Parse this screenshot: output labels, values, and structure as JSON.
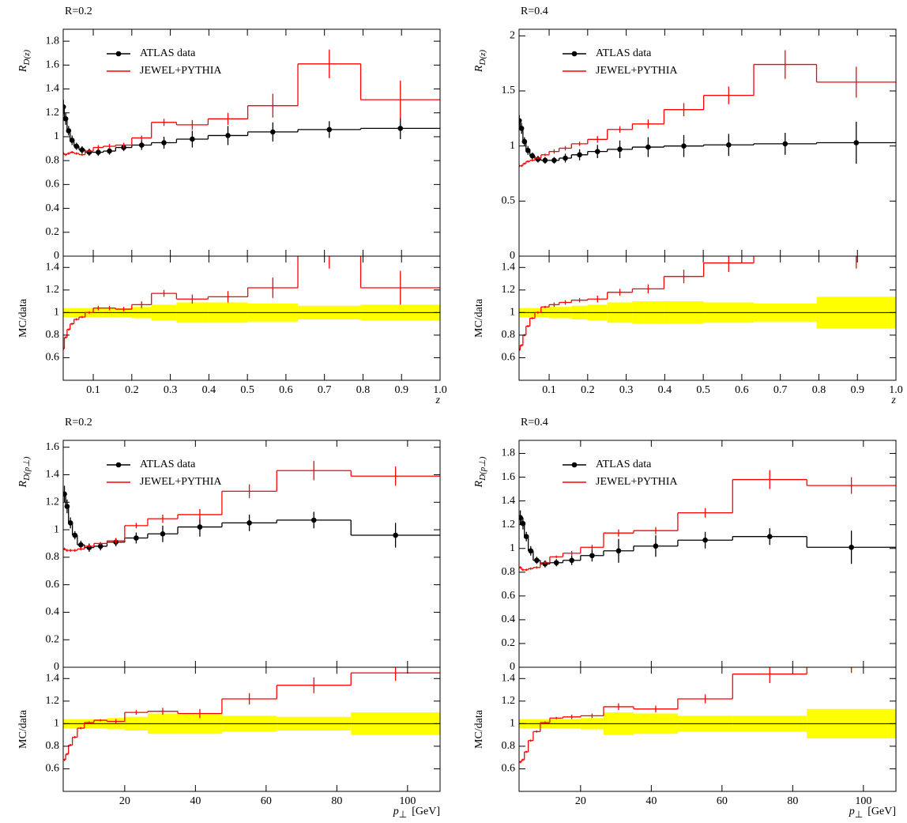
{
  "chart_data": [
    {
      "type": "histogram",
      "title": "R=0.2",
      "xlabel": "z",
      "xlim": [
        0.022,
        1.0
      ],
      "xticks": [
        0.1,
        0.2,
        0.3,
        0.4,
        0.5,
        0.6,
        0.7,
        0.8,
        0.9,
        {
          "value": 1,
          "label": "1.0"
        }
      ],
      "bins": [
        0.02,
        0.025,
        0.032,
        0.04,
        0.05,
        0.063,
        0.079,
        0.1,
        0.126,
        0.158,
        0.2,
        0.251,
        0.316,
        0.398,
        0.501,
        0.631,
        0.794,
        1.0
      ],
      "main": {
        "ylabel": "R",
        "ylabel_sub": "D(z)",
        "legend": "upper left",
        "ylim": [
          0,
          1.9
        ],
        "yticks": [
          0,
          0.2,
          0.4,
          0.6,
          0.8,
          1,
          1.2,
          1.4,
          1.6,
          1.8
        ],
        "series": [
          {
            "name": "ATLAS data",
            "kind": "points",
            "color": "#000000",
            "values": [
              1.25,
              1.15,
              1.05,
              0.97,
              0.92,
              0.89,
              0.87,
              0.87,
              0.88,
              0.91,
              0.93,
              0.95,
              0.98,
              1.01,
              1.04,
              1.06,
              1.07
            ],
            "errors": [
              0.06,
              0.05,
              0.04,
              0.04,
              0.03,
              0.03,
              0.03,
              0.03,
              0.03,
              0.03,
              0.04,
              0.05,
              0.07,
              0.08,
              0.08,
              0.07,
              0.09
            ]
          },
          {
            "name": "JEWEL+PYTHIA",
            "kind": "step",
            "color": "#ff0000",
            "values": [
              0.86,
              0.85,
              0.86,
              0.87,
              0.86,
              0.85,
              0.88,
              0.91,
              0.92,
              0.93,
              0.99,
              1.12,
              1.1,
              1.15,
              1.26,
              1.61,
              1.31
            ],
            "errors": [
              0.01,
              0.01,
              0.01,
              0.01,
              0.01,
              0.01,
              0.01,
              0.02,
              0.02,
              0.02,
              0.02,
              0.03,
              0.04,
              0.05,
              0.1,
              0.12,
              0.16
            ]
          }
        ]
      },
      "ratio": {
        "ylabel": "MC/data",
        "ylim": [
          0.4,
          1.5
        ],
        "yticks": [
          0.6,
          0.8,
          1,
          1.2,
          1.4
        ],
        "series": [
          {
            "kind": "band",
            "color": "#ffff00",
            "line_color": "#000000",
            "values": [
              1,
              1,
              1,
              1,
              1,
              1,
              1,
              1,
              1,
              1,
              1,
              1,
              1,
              1,
              1,
              1,
              1
            ],
            "errors": [
              0.04,
              0.04,
              0.04,
              0.04,
              0.04,
              0.04,
              0.04,
              0.04,
              0.04,
              0.04,
              0.05,
              0.07,
              0.09,
              0.09,
              0.08,
              0.06,
              0.07
            ]
          },
          {
            "kind": "step",
            "color": "#ff0000",
            "values": [
              0.68,
              0.78,
              0.85,
              0.9,
              0.94,
              0.96,
              1.0,
              1.04,
              1.04,
              1.03,
              1.07,
              1.17,
              1.12,
              1.14,
              1.22,
              1.52,
              1.22
            ],
            "errors": [
              0.01,
              0.01,
              0.01,
              0.01,
              0.01,
              0.01,
              0.01,
              0.02,
              0.02,
              0.02,
              0.03,
              0.03,
              0.04,
              0.05,
              0.09,
              0.13,
              0.15
            ]
          }
        ]
      }
    },
    {
      "type": "histogram",
      "title": "R=0.4",
      "xlabel": "z",
      "xlim": [
        0.022,
        1.0
      ],
      "xticks": [
        0.1,
        0.2,
        0.3,
        0.4,
        0.5,
        0.6,
        0.7,
        0.8,
        0.9,
        {
          "value": 1,
          "label": "1.0"
        }
      ],
      "bins": [
        0.02,
        0.025,
        0.032,
        0.04,
        0.05,
        0.063,
        0.079,
        0.1,
        0.126,
        0.158,
        0.2,
        0.251,
        0.316,
        0.398,
        0.501,
        0.631,
        0.794,
        1.0
      ],
      "main": {
        "ylabel": "R",
        "ylabel_sub": "D(z)",
        "legend": "upper left",
        "ylim": [
          0,
          2.06
        ],
        "yticks": [
          0,
          0.5,
          1,
          1.5,
          2
        ],
        "series": [
          {
            "name": "ATLAS data",
            "kind": "points",
            "color": "#000000",
            "values": [
              1.23,
              1.16,
              1.04,
              0.96,
              0.91,
              0.88,
              0.87,
              0.87,
              0.89,
              0.92,
              0.95,
              0.97,
              0.99,
              1.0,
              1.01,
              1.02,
              1.03
            ],
            "errors": [
              0.05,
              0.05,
              0.04,
              0.04,
              0.03,
              0.03,
              0.03,
              0.03,
              0.04,
              0.05,
              0.06,
              0.08,
              0.09,
              0.1,
              0.1,
              0.1,
              0.19
            ]
          },
          {
            "name": "JEWEL+PYTHIA",
            "kind": "step",
            "color": "#ff0000",
            "values": [
              0.82,
              0.82,
              0.84,
              0.86,
              0.87,
              0.89,
              0.92,
              0.95,
              0.98,
              1.02,
              1.06,
              1.15,
              1.2,
              1.33,
              1.46,
              1.74,
              1.58
            ],
            "errors": [
              0.01,
              0.01,
              0.01,
              0.01,
              0.01,
              0.01,
              0.01,
              0.02,
              0.02,
              0.02,
              0.03,
              0.03,
              0.04,
              0.06,
              0.08,
              0.13,
              0.14
            ]
          }
        ]
      },
      "ratio": {
        "ylabel": "MC/data",
        "ylim": [
          0.4,
          1.5
        ],
        "yticks": [
          0.6,
          0.8,
          1,
          1.2,
          1.4
        ],
        "series": [
          {
            "kind": "band",
            "color": "#ffff00",
            "line_color": "#000000",
            "values": [
              1,
              1,
              1,
              1,
              1,
              1,
              1,
              1,
              1,
              1,
              1,
              1,
              1,
              1,
              1,
              1,
              1
            ],
            "errors": [
              0.04,
              0.04,
              0.04,
              0.04,
              0.04,
              0.04,
              0.04,
              0.05,
              0.05,
              0.06,
              0.07,
              0.09,
              0.1,
              0.1,
              0.09,
              0.08,
              0.14
            ]
          },
          {
            "kind": "step",
            "color": "#ff0000",
            "values": [
              0.67,
              0.71,
              0.8,
              0.88,
              0.95,
              1.0,
              1.05,
              1.07,
              1.09,
              1.11,
              1.12,
              1.18,
              1.21,
              1.32,
              1.44,
              1.7,
              1.53
            ],
            "errors": [
              0.01,
              0.01,
              0.01,
              0.01,
              0.01,
              0.01,
              0.01,
              0.02,
              0.02,
              0.02,
              0.03,
              0.03,
              0.04,
              0.06,
              0.08,
              0.13,
              0.14
            ]
          }
        ]
      }
    },
    {
      "type": "histogram",
      "title": "R=0.2",
      "xlabel": "p",
      "xlabel_sub": "⊥",
      "xlabel_unit": "[GeV]",
      "xlim": [
        2.6,
        109.2
      ],
      "xticks": [
        20,
        40,
        60,
        80,
        100
      ],
      "bins": [
        2.6,
        3.3,
        4.1,
        5.2,
        6.6,
        8.6,
        11.3,
        15,
        20,
        26.5,
        35,
        47.5,
        63,
        84,
        109.2
      ],
      "main": {
        "ylabel": "R",
        "ylabel_sub": "D(p⊥)",
        "legend": "upper left",
        "ylim": [
          0,
          1.65
        ],
        "yticks": [
          0,
          0.2,
          0.4,
          0.6,
          0.8,
          1,
          1.2,
          1.4,
          1.6
        ],
        "series": [
          {
            "name": "ATLAS data",
            "kind": "points",
            "color": "#000000",
            "values": [
              1.26,
              1.17,
              1.05,
              0.96,
              0.89,
              0.87,
              0.88,
              0.91,
              0.94,
              0.97,
              1.02,
              1.05,
              1.07,
              0.96
            ],
            "errors": [
              0.06,
              0.05,
              0.04,
              0.03,
              0.03,
              0.03,
              0.03,
              0.03,
              0.04,
              0.06,
              0.07,
              0.06,
              0.06,
              0.09
            ]
          },
          {
            "name": "JEWEL+PYTHIA",
            "kind": "step",
            "color": "#ff0000",
            "values": [
              0.86,
              0.85,
              0.85,
              0.85,
              0.86,
              0.88,
              0.9,
              0.92,
              1.03,
              1.08,
              1.11,
              1.28,
              1.43,
              1.39
            ],
            "errors": [
              0.01,
              0.01,
              0.01,
              0.01,
              0.01,
              0.01,
              0.01,
              0.02,
              0.02,
              0.03,
              0.04,
              0.05,
              0.07,
              0.07
            ]
          }
        ]
      },
      "ratio": {
        "ylabel": "MC/data",
        "ylim": [
          0.4,
          1.5
        ],
        "yticks": [
          0.6,
          0.8,
          1,
          1.2,
          1.4
        ],
        "series": [
          {
            "kind": "band",
            "color": "#ffff00",
            "line_color": "#000000",
            "values": [
              1,
              1,
              1,
              1,
              1,
              1,
              1,
              1,
              1,
              1,
              1,
              1,
              1,
              1
            ],
            "errors": [
              0.04,
              0.04,
              0.04,
              0.04,
              0.04,
              0.04,
              0.04,
              0.05,
              0.06,
              0.09,
              0.09,
              0.07,
              0.06,
              0.1
            ]
          },
          {
            "kind": "step",
            "color": "#ff0000",
            "values": [
              0.68,
              0.73,
              0.81,
              0.88,
              0.96,
              1.01,
              1.03,
              1.02,
              1.1,
              1.11,
              1.09,
              1.22,
              1.34,
              1.45
            ],
            "errors": [
              0.01,
              0.01,
              0.01,
              0.01,
              0.01,
              0.01,
              0.01,
              0.02,
              0.02,
              0.03,
              0.04,
              0.05,
              0.07,
              0.07
            ]
          }
        ]
      }
    },
    {
      "type": "histogram",
      "title": "R=0.4",
      "xlabel": "p",
      "xlabel_sub": "⊥",
      "xlabel_unit": "[GeV]",
      "xlim": [
        2.6,
        109.2
      ],
      "xticks": [
        20,
        40,
        60,
        80,
        100
      ],
      "bins": [
        2.6,
        3.3,
        4.1,
        5.2,
        6.6,
        8.6,
        11.3,
        15,
        20,
        26.5,
        35,
        47.5,
        63,
        84,
        109.2
      ],
      "main": {
        "ylabel": "R",
        "ylabel_sub": "D(p⊥)",
        "legend": "upper left",
        "ylim": [
          0,
          1.91
        ],
        "yticks": [
          0,
          0.2,
          0.4,
          0.6,
          0.8,
          1,
          1.2,
          1.4,
          1.6,
          1.8
        ],
        "series": [
          {
            "name": "ATLAS data",
            "kind": "points",
            "color": "#000000",
            "values": [
              1.26,
              1.21,
              1.1,
              0.98,
              0.9,
              0.87,
              0.88,
              0.9,
              0.94,
              0.98,
              1.02,
              1.07,
              1.1,
              1.01
            ],
            "errors": [
              0.06,
              0.05,
              0.04,
              0.04,
              0.03,
              0.03,
              0.03,
              0.04,
              0.05,
              0.1,
              0.09,
              0.07,
              0.07,
              0.14
            ]
          },
          {
            "name": "JEWEL+PYTHIA",
            "kind": "step",
            "color": "#ff0000",
            "values": [
              0.84,
              0.82,
              0.82,
              0.83,
              0.84,
              0.88,
              0.93,
              0.96,
              1.01,
              1.13,
              1.15,
              1.3,
              1.58,
              1.53
            ],
            "errors": [
              0.01,
              0.01,
              0.01,
              0.01,
              0.01,
              0.01,
              0.01,
              0.02,
              0.02,
              0.03,
              0.03,
              0.04,
              0.08,
              0.07
            ]
          }
        ]
      },
      "ratio": {
        "ylabel": "MC/data",
        "ylim": [
          0.4,
          1.5
        ],
        "yticks": [
          0.6,
          0.8,
          1,
          1.2,
          1.4
        ],
        "series": [
          {
            "kind": "band",
            "color": "#ffff00",
            "line_color": "#000000",
            "values": [
              1,
              1,
              1,
              1,
              1,
              1,
              1,
              1,
              1,
              1,
              1,
              1,
              1,
              1
            ],
            "errors": [
              0.04,
              0.04,
              0.04,
              0.04,
              0.04,
              0.04,
              0.04,
              0.04,
              0.05,
              0.1,
              0.09,
              0.07,
              0.07,
              0.13
            ]
          },
          {
            "kind": "step",
            "color": "#ff0000",
            "values": [
              0.66,
              0.68,
              0.75,
              0.85,
              0.93,
              1.01,
              1.05,
              1.06,
              1.07,
              1.15,
              1.13,
              1.22,
              1.44,
              1.52
            ],
            "errors": [
              0.01,
              0.01,
              0.01,
              0.01,
              0.01,
              0.01,
              0.01,
              0.02,
              0.02,
              0.03,
              0.03,
              0.04,
              0.08,
              0.07
            ]
          }
        ]
      }
    }
  ]
}
